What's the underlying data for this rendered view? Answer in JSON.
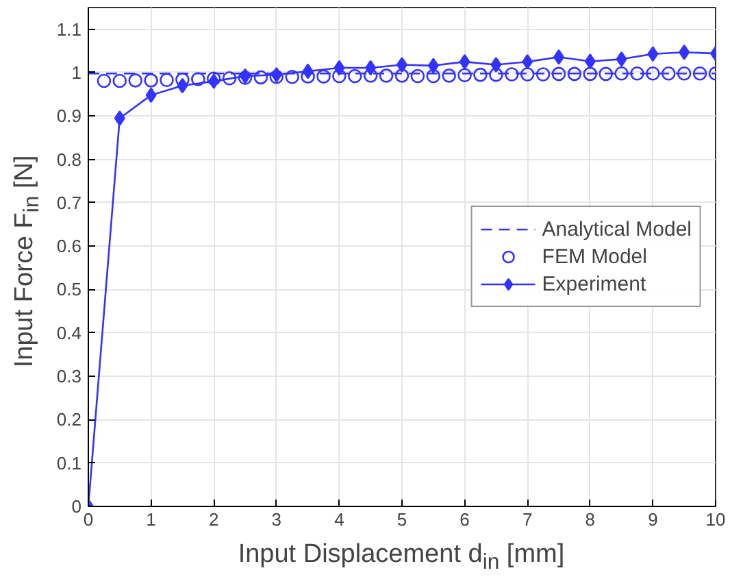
{
  "chart_data": {
    "type": "line",
    "xlabel": "Input Displacement d$_{in}$ [mm]",
    "ylabel": "Input Force F$_{in}$ [N]",
    "xlim": [
      0,
      10
    ],
    "ylim": [
      0,
      1.15
    ],
    "xticks": [
      0,
      1,
      2,
      3,
      4,
      5,
      6,
      7,
      8,
      9,
      10
    ],
    "yticks": [
      0,
      0.1,
      0.2,
      0.3,
      0.4,
      0.5,
      0.6,
      0.7,
      0.8,
      0.9,
      1,
      1.1
    ],
    "grid": true,
    "legend": "right",
    "series": [
      {
        "name": "Analytical Model",
        "color": "#3333ff",
        "line_style": "dashed",
        "marker": "none",
        "x": [
          0,
          10
        ],
        "values": [
          0.998,
          0.998
        ]
      },
      {
        "name": "FEM Model",
        "color": "#3333ff",
        "type": "scatter",
        "marker": "circle",
        "x": [
          0.25,
          0.5,
          0.75,
          1,
          1.25,
          1.5,
          1.75,
          2,
          2.25,
          2.5,
          2.75,
          3,
          3.25,
          3.5,
          3.75,
          4,
          4.25,
          4.5,
          4.75,
          5,
          5.25,
          5.5,
          5.75,
          6,
          6.25,
          6.5,
          6.75,
          7,
          7.25,
          7.5,
          7.75,
          8,
          8.25,
          8.5,
          8.75,
          9,
          9.25,
          9.5,
          9.75,
          10
        ],
        "values": [
          0.981,
          0.981,
          0.982,
          0.982,
          0.983,
          0.984,
          0.985,
          0.986,
          0.987,
          0.988,
          0.989,
          0.99,
          0.99,
          0.991,
          0.991,
          0.992,
          0.992,
          0.993,
          0.993,
          0.993,
          0.992,
          0.992,
          0.993,
          0.994,
          0.995,
          0.995,
          0.996,
          0.996,
          0.996,
          0.997,
          0.997,
          0.997,
          0.997,
          0.998,
          0.998,
          0.998,
          0.998,
          0.998,
          0.998,
          0.998
        ]
      },
      {
        "name": "Experiment",
        "color": "#3333ff",
        "line_style": "solid",
        "marker": "diamond",
        "x": [
          0,
          0.5,
          1,
          1.5,
          2,
          2.5,
          3,
          3.5,
          4,
          4.5,
          5,
          5.5,
          6,
          6.5,
          7,
          7.5,
          8,
          8.5,
          9,
          9.5,
          10
        ],
        "values": [
          0,
          0.895,
          0.948,
          0.97,
          0.98,
          0.992,
          0.995,
          1.003,
          1.011,
          1.011,
          1.018,
          1.016,
          1.025,
          1.018,
          1.025,
          1.036,
          1.026,
          1.031,
          1.043,
          1.047,
          1.044
        ]
      }
    ]
  }
}
